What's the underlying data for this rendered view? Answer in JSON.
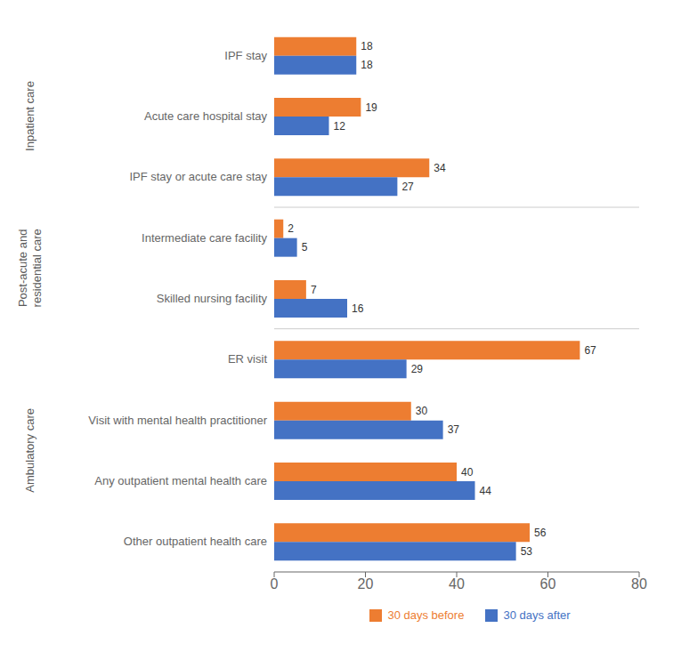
{
  "chart_data": {
    "type": "bar",
    "orientation": "horizontal",
    "categories": [
      "IPF stay",
      "Acute care hospital stay",
      "IPF stay or acute care stay",
      "Intermediate care facility",
      "Skilled nursing facility",
      "ER visit",
      "Visit with mental health practitioner",
      "Any outpatient mental health care",
      "Other outpatient health care"
    ],
    "series": [
      {
        "name": "30 days before",
        "color": "#ED7D31",
        "values": [
          18,
          19,
          34,
          2,
          7,
          67,
          30,
          40,
          56
        ]
      },
      {
        "name": "30 days after",
        "color": "#4472C4",
        "values": [
          18,
          12,
          27,
          5,
          16,
          29,
          37,
          44,
          53
        ]
      }
    ],
    "xlim": [
      0,
      80
    ],
    "xticks": [
      0,
      20,
      40,
      60,
      80
    ],
    "data_labels": true,
    "grid": false,
    "legend": "bottom",
    "annotations": [
      {
        "text": "Inpatient care",
        "color": "#595959",
        "categories": [
          "IPF stay",
          "Acute care hospital stay",
          "IPF stay or acute care stay"
        ]
      },
      {
        "text": "Post-acute and\nresidential care",
        "color": "#595959",
        "categories": [
          "Intermediate care facility",
          "Skilled nursing facility"
        ]
      },
      {
        "text": "Ambulatory care",
        "color": "#595959",
        "categories": [
          "ER visit",
          "Visit with mental health practitioner",
          "Any outpatient mental health care",
          "Other outpatient health care"
        ]
      }
    ]
  }
}
